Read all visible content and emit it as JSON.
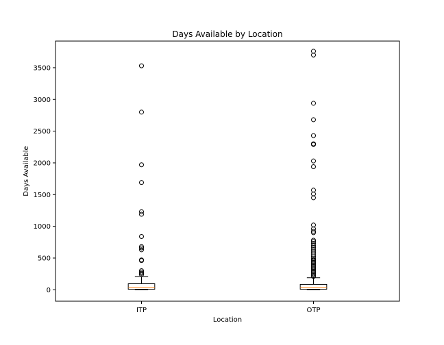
{
  "chart_data": {
    "type": "box",
    "title": "Days Available by Location",
    "xlabel": "Location",
    "ylabel": "Days Available",
    "ylim": [
      -180,
      3920
    ],
    "yticks": [
      0,
      500,
      1000,
      1500,
      2000,
      2500,
      3000,
      3500
    ],
    "grid": false,
    "categories": [
      "ITP",
      "OTP"
    ],
    "boxes": [
      {
        "name": "ITP",
        "whisker_low": 0,
        "q1": 8,
        "median": 35,
        "q3": 95,
        "whisker_high": 210,
        "outliers": [
          240,
          260,
          280,
          300,
          460,
          470,
          630,
          660,
          680,
          840,
          1190,
          1230,
          1690,
          1970,
          2800,
          3530
        ]
      },
      {
        "name": "OTP",
        "whisker_low": 0,
        "q1": 8,
        "median": 30,
        "q3": 85,
        "whisker_high": 190,
        "outliers": [
          210,
          230,
          250,
          270,
          290,
          310,
          330,
          350,
          370,
          390,
          410,
          430,
          450,
          470,
          490,
          520,
          550,
          580,
          610,
          640,
          670,
          700,
          730,
          760,
          780,
          900,
          920,
          960,
          1020,
          1450,
          1510,
          1570,
          1940,
          2030,
          2290,
          2300,
          2430,
          2680,
          2940,
          3700,
          3760
        ]
      }
    ]
  }
}
